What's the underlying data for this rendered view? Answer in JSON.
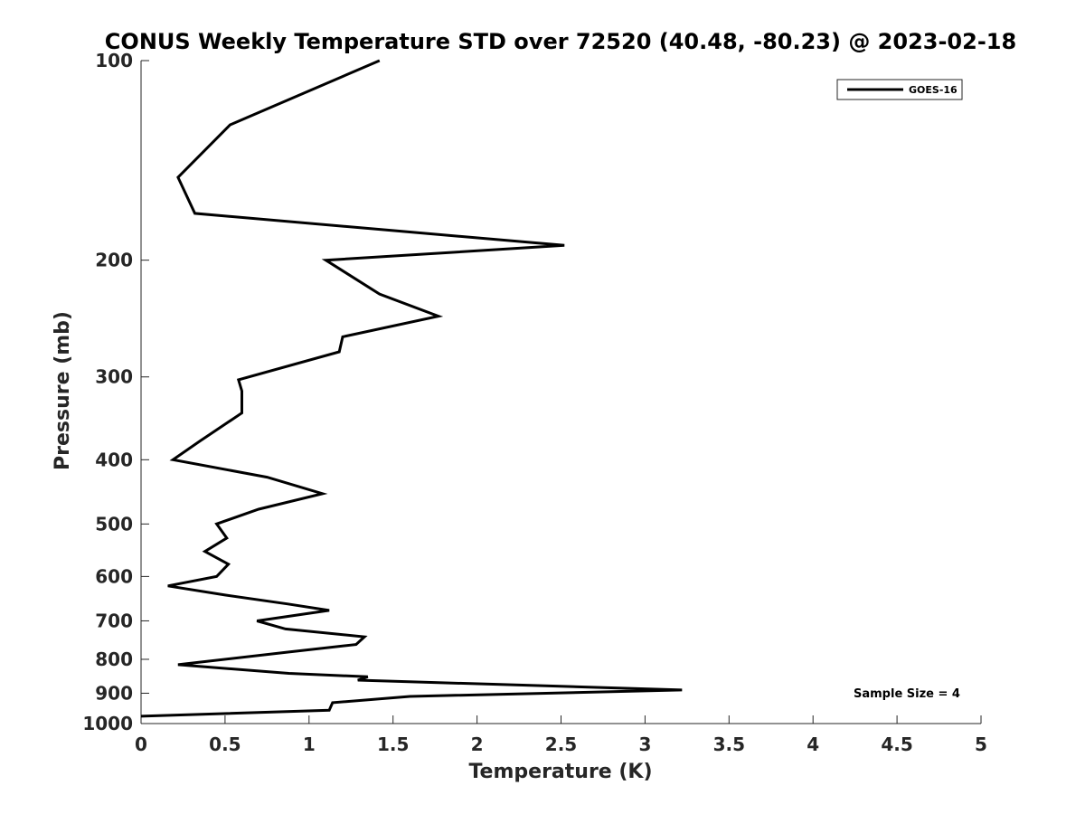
{
  "chart_data": {
    "type": "line",
    "title": "CONUS Weekly Temperature STD over 72520 (40.48, -80.23) @ 2023-02-18",
    "xlabel": "Temperature (K)",
    "ylabel": "Pressure (mb)",
    "xlim": [
      0,
      5
    ],
    "ylim": [
      100,
      1000
    ],
    "yscale": "log",
    "yreversed": true,
    "xticks": [
      0,
      0.5,
      1,
      1.5,
      2,
      2.5,
      3,
      3.5,
      4,
      4.5,
      5
    ],
    "xtick_labels": [
      "0",
      "0.5",
      "1",
      "1.5",
      "2",
      "2.5",
      "3",
      "3.5",
      "4",
      "4.5",
      "5"
    ],
    "yticks": [
      100,
      200,
      300,
      400,
      500,
      600,
      700,
      800,
      900,
      1000
    ],
    "ytick_labels": [
      "100",
      "200",
      "300",
      "400",
      "500",
      "600",
      "700",
      "800",
      "900",
      "1000"
    ],
    "grid": false,
    "legend_position": "top-right",
    "series": [
      {
        "name": "GOES-16",
        "color": "#000000",
        "points": [
          [
            1.42,
            100
          ],
          [
            0.53,
            125
          ],
          [
            0.22,
            150
          ],
          [
            0.32,
            170
          ],
          [
            2.52,
            190
          ],
          [
            1.1,
            200
          ],
          [
            1.42,
            225
          ],
          [
            1.77,
            243
          ],
          [
            1.2,
            261
          ],
          [
            1.18,
            275
          ],
          [
            0.58,
            303
          ],
          [
            0.6,
            315
          ],
          [
            0.6,
            340
          ],
          [
            0.35,
            375
          ],
          [
            0.19,
            400
          ],
          [
            0.75,
            425
          ],
          [
            1.08,
            450
          ],
          [
            0.7,
            475
          ],
          [
            0.45,
            500
          ],
          [
            0.51,
            525
          ],
          [
            0.38,
            550
          ],
          [
            0.52,
            575
          ],
          [
            0.45,
            600
          ],
          [
            0.16,
            620
          ],
          [
            0.5,
            640
          ],
          [
            0.87,
            660
          ],
          [
            1.12,
            675
          ],
          [
            0.69,
            700
          ],
          [
            0.86,
            720
          ],
          [
            1.33,
            740
          ],
          [
            1.28,
            760
          ],
          [
            0.88,
            780
          ],
          [
            0.22,
            815
          ],
          [
            0.88,
            840
          ],
          [
            1.35,
            850
          ],
          [
            1.29,
            860
          ],
          [
            3.22,
            890
          ],
          [
            1.6,
            910
          ],
          [
            1.14,
            930
          ],
          [
            1.12,
            955
          ],
          [
            0,
            975
          ]
        ]
      }
    ],
    "annotation": "Sample Size = 4"
  }
}
